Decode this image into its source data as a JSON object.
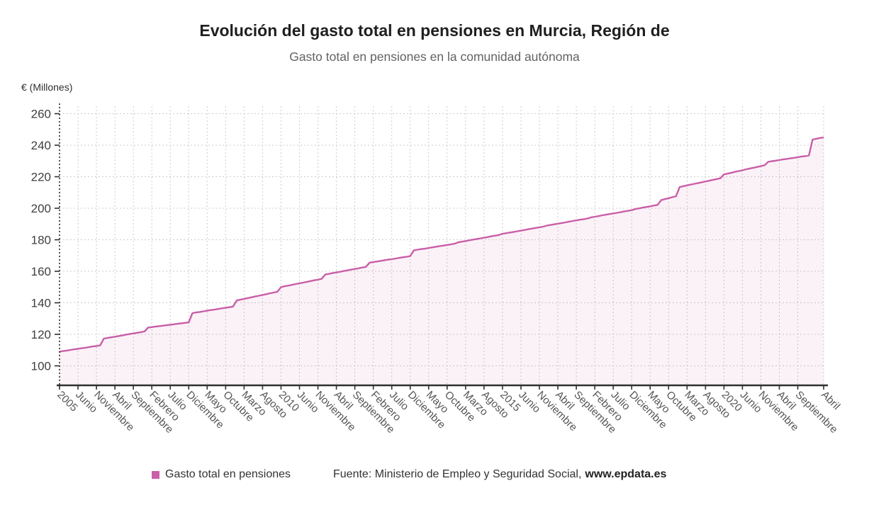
{
  "header": {
    "title": "Evolución del gasto total en pensiones en Murcia, Región de",
    "subtitle": "Gasto total en pensiones en la comunidad autónoma"
  },
  "legend": {
    "label": "Gasto total en pensiones",
    "color": "#c95fa8"
  },
  "footer": {
    "source": "Fuente: Ministerio de Empleo y Seguridad Social,",
    "site": "www.epdata.es"
  },
  "chart_data": {
    "type": "area",
    "title": "Evolución del gasto total en pensiones en Murcia, Región de",
    "subtitle": "Gasto total en pensiones en la comunidad autónoma",
    "ylabel": "€ (Millones)",
    "xlabel": "",
    "x_unit": "month",
    "x_start": "Enero 2005",
    "x_end": "Abril 2022",
    "ylim": [
      86,
      264
    ],
    "y_ticks": [
      100,
      120,
      140,
      160,
      180,
      200,
      220,
      240,
      260
    ],
    "grid": true,
    "legend_position": "bottom-left",
    "line_color": "#c95fa8",
    "area_fill": "rgba(201,95,168,0.08)",
    "grid_color": "#cccccc",
    "axis_color": "#2f2f2f",
    "x_tick_indices": [
      0,
      5,
      10,
      15,
      20,
      25,
      30,
      35,
      40,
      45,
      50,
      55,
      60,
      65,
      70,
      75,
      80,
      85,
      90,
      95,
      100,
      105,
      110,
      115,
      120,
      125,
      130,
      135,
      140,
      145,
      150,
      155,
      160,
      165,
      170,
      175,
      180,
      185,
      190,
      195,
      200,
      207
    ],
    "x_tick_labels": [
      "2005",
      "Junio",
      "Noviembre",
      "Abril",
      "Septiembre",
      "Febrero",
      "Julio",
      "Diciembre",
      "Mayo",
      "Octubre",
      "Marzo",
      "Agosto",
      "2010",
      "Junio",
      "Noviembre",
      "Abril",
      "Septiembre",
      "Febrero",
      "Julio",
      "Diciembre",
      "Mayo",
      "Octubre",
      "Marzo",
      "Agosto",
      "2015",
      "Junio",
      "Noviembre",
      "Abril",
      "Septiembre",
      "Febrero",
      "Julio",
      "Diciembre",
      "Mayo",
      "Octubre",
      "Marzo",
      "Agosto",
      "2020",
      "Junio",
      "Noviembre",
      "Abril",
      "Septiembre",
      "Abril"
    ],
    "series": [
      {
        "name": "Gasto total en pensiones",
        "color": "#c95fa8",
        "fill": "rgba(201,95,168,0.08)",
        "values": [
          109.0,
          109.4,
          109.7,
          110.1,
          110.5,
          110.8,
          111.2,
          111.5,
          111.9,
          112.3,
          112.6,
          113.0,
          117.3,
          117.7,
          118.1,
          118.5,
          118.9,
          119.3,
          119.8,
          120.2,
          120.6,
          121.0,
          121.4,
          121.8,
          124.3,
          124.6,
          124.9,
          125.2,
          125.5,
          125.8,
          126.1,
          126.4,
          126.7,
          127.0,
          127.3,
          127.6,
          133.5,
          133.9,
          134.2,
          134.6,
          135.0,
          135.4,
          135.7,
          136.1,
          136.5,
          136.9,
          137.2,
          137.6,
          141.5,
          142.0,
          142.5,
          143.0,
          143.5,
          144.0,
          144.5,
          145.0,
          145.5,
          146.0,
          146.5,
          147.0,
          150.0,
          150.5,
          150.9,
          151.4,
          151.9,
          152.4,
          152.8,
          153.3,
          153.8,
          154.3,
          154.7,
          155.2,
          158.0,
          158.4,
          158.9,
          159.3,
          159.7,
          160.2,
          160.6,
          161.1,
          161.5,
          161.9,
          162.4,
          162.8,
          165.5,
          165.9,
          166.2,
          166.6,
          167.0,
          167.4,
          167.7,
          168.1,
          168.5,
          168.9,
          169.2,
          169.6,
          173.3,
          173.7,
          174.1,
          174.4,
          174.8,
          175.2,
          175.6,
          176.0,
          176.3,
          176.7,
          177.1,
          177.5,
          178.4,
          178.8,
          179.2,
          179.7,
          180.1,
          180.5,
          180.9,
          181.3,
          181.7,
          182.2,
          182.6,
          183.0,
          183.8,
          184.2,
          184.6,
          185.0,
          185.4,
          185.8,
          186.2,
          186.7,
          187.1,
          187.5,
          187.9,
          188.3,
          189.0,
          189.4,
          189.8,
          190.2,
          190.6,
          191.0,
          191.5,
          191.9,
          192.3,
          192.7,
          193.1,
          193.5,
          194.2,
          194.6,
          195.0,
          195.5,
          195.9,
          196.3,
          196.7,
          197.1,
          197.5,
          198.0,
          198.4,
          198.8,
          199.5,
          199.9,
          200.4,
          200.8,
          201.2,
          201.7,
          202.1,
          205.2,
          205.8,
          206.4,
          207.0,
          207.6,
          213.5,
          214.0,
          214.5,
          215.0,
          215.5,
          216.0,
          216.5,
          217.0,
          217.5,
          218.0,
          218.5,
          219.0,
          221.5,
          222.0,
          222.5,
          223.1,
          223.6,
          224.1,
          224.7,
          225.2,
          225.7,
          226.2,
          226.8,
          227.3,
          229.5,
          229.9,
          230.2,
          230.6,
          231.0,
          231.3,
          231.7,
          232.0,
          232.4,
          232.8,
          233.1,
          233.5,
          243.6,
          244.1,
          244.6,
          245.0
        ]
      }
    ]
  }
}
